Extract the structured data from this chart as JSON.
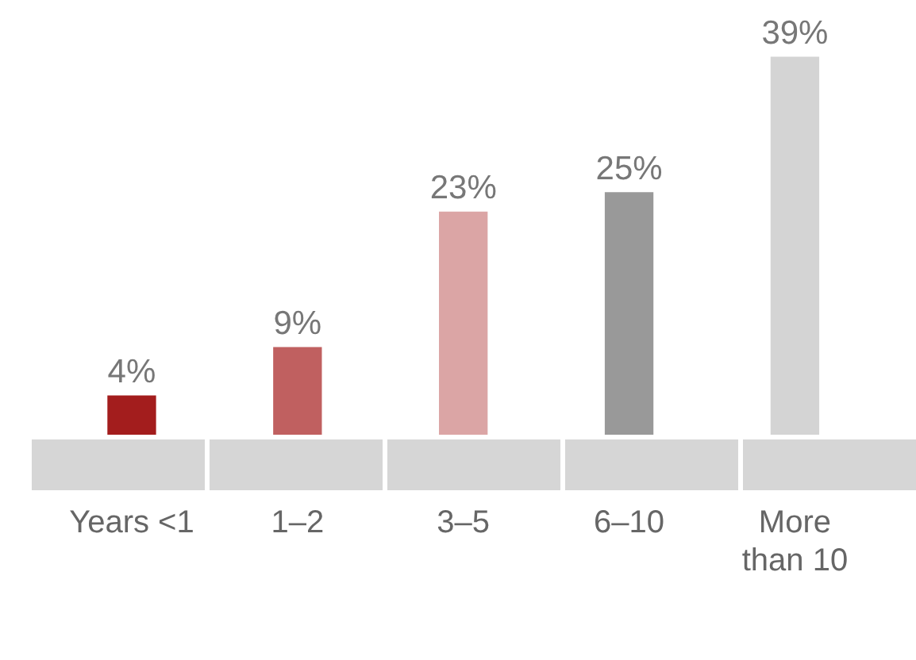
{
  "chart_data": {
    "type": "bar",
    "categories": [
      "Years <1",
      "1–2",
      "3–5",
      "6–10",
      "More than 10"
    ],
    "values": [
      4,
      9,
      23,
      25,
      39
    ],
    "colors": [
      "#a31d1d",
      "#c06060",
      "#dba5a5",
      "#999999",
      "#d4d4d4"
    ],
    "value_labels": [
      "4%",
      "9%",
      "23%",
      "25%",
      "39%"
    ],
    "grid": false,
    "legend": false
  }
}
